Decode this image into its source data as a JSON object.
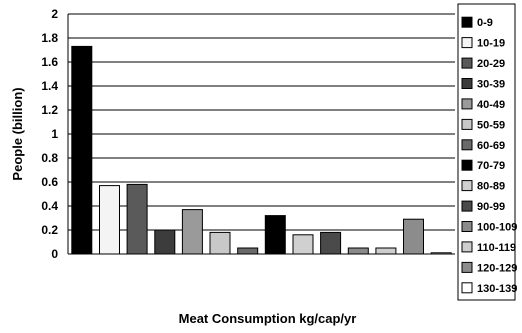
{
  "chart_data": {
    "type": "bar",
    "ylabel": "People (billion)",
    "xlabel": "Meat Consumption kg/cap/yr",
    "ylim": [
      0,
      2
    ],
    "yticks": [
      "0",
      "0.2",
      "0.4",
      "0.6",
      "0.8",
      "1",
      "1.2",
      "1.4",
      "1.6",
      "1.8",
      "2"
    ],
    "grid": "horizontal",
    "legend_position": "right",
    "categories": [
      "0-9",
      "10-19",
      "20-29",
      "30-39",
      "40-49",
      "50-59",
      "60-69",
      "70-79",
      "80-89",
      "90-99",
      "100-109",
      "110-119",
      "120-129",
      "130-139"
    ],
    "values": [
      1.73,
      0.57,
      0.58,
      0.2,
      0.37,
      0.18,
      0.05,
      0.32,
      0.16,
      0.18,
      0.05,
      0.05,
      0.29,
      0.01
    ],
    "colors": [
      "#000000",
      "#f4f4f4",
      "#5a5a5a",
      "#3c3c3c",
      "#9a9a9a",
      "#c8c8c8",
      "#6a6a6a",
      "#000000",
      "#d0d0d0",
      "#4a4a4a",
      "#8a8a8a",
      "#cdcdcd",
      "#8c8c8c",
      "#ffffff"
    ]
  }
}
